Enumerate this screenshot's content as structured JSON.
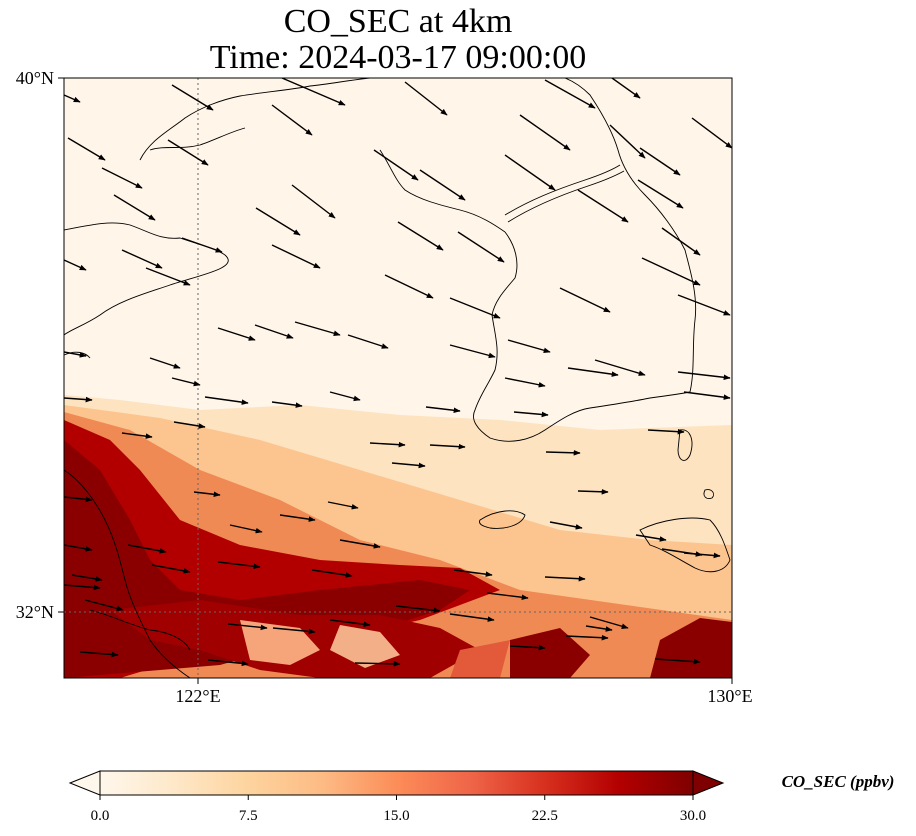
{
  "title": {
    "line1": "CO_SEC at 4km",
    "line2": "Time: 2024-03-17 09:00:00"
  },
  "map": {
    "extent": {
      "lon_min": 118,
      "lon_max": 130,
      "lat_min": 30.8,
      "lat_max": 40
    },
    "lat_ticks": [
      {
        "value": 40,
        "label": "40°N"
      },
      {
        "value": 32,
        "label": "32°N"
      }
    ],
    "lon_ticks": [
      {
        "value": 122,
        "label": "122°E"
      },
      {
        "value": 130,
        "label": "130°E"
      }
    ],
    "gridlines": "dotted",
    "variable": "CO_SEC",
    "units": "ppbv",
    "level": "4km",
    "wind_vectors": "black arrows, predominantly west-north-westerly (blowing toward ESE)"
  },
  "colorbar": {
    "label": "CO_SEC (ppbv)",
    "colormap": "OrRd",
    "min": 0,
    "max": 30,
    "ticks": [
      "0.0",
      "7.5",
      "15.0",
      "22.5",
      "30.0"
    ],
    "extend": "both",
    "colors": [
      "#fff7ec",
      "#fee8c8",
      "#fdd49e",
      "#fdbb84",
      "#fc8d59",
      "#ef6548",
      "#d7301f",
      "#b30000",
      "#7f0000"
    ]
  }
}
